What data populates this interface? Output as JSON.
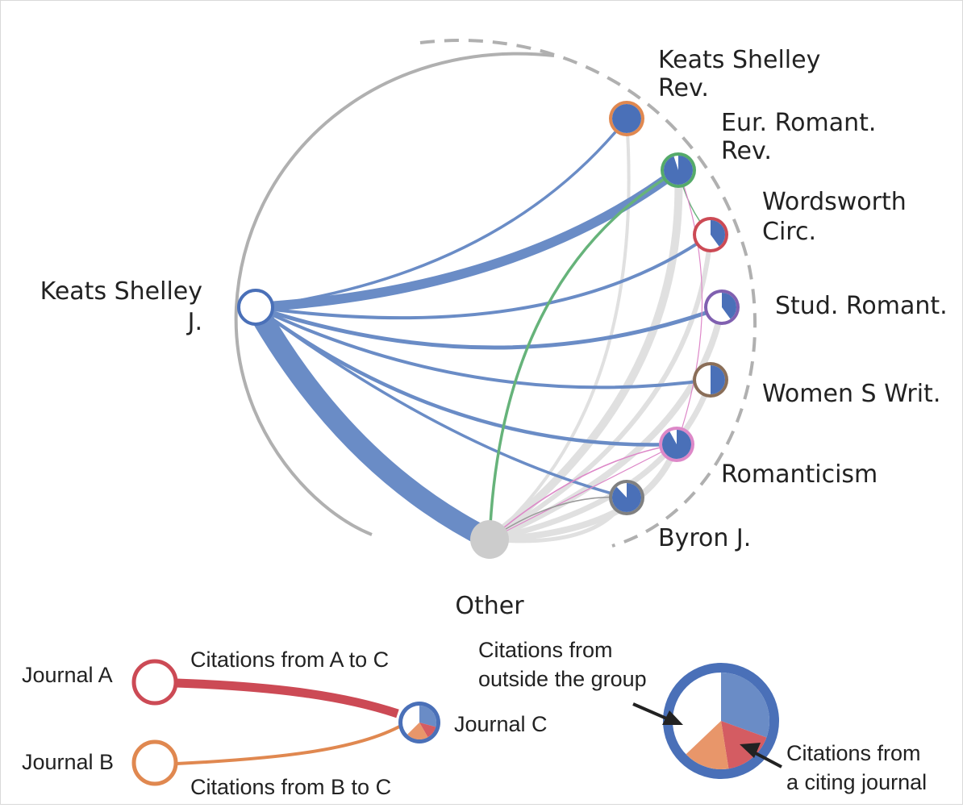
{
  "diagram": {
    "source_journal": {
      "label_line1": "Keats Shelley",
      "label_line2": "J."
    },
    "other_node": {
      "label": "Other"
    },
    "journals": [
      {
        "label_line1": "Keats Shelley",
        "label_line2": "Rev.",
        "ring_color": "#e08850",
        "cited_share": 1.0
      },
      {
        "label_line1": "Eur. Romant.",
        "label_line2": "Rev.",
        "ring_color": "#55aa6a",
        "cited_share": 0.95
      },
      {
        "label_line1": "Wordsworth",
        "label_line2": "Circ.",
        "ring_color": "#cc4a55",
        "cited_share": 0.4
      },
      {
        "label_line1": "Stud. Romant.",
        "label_line2": "",
        "ring_color": "#8060b0",
        "cited_share": 0.4
      },
      {
        "label_line1": "Women S Writ.",
        "label_line2": "",
        "ring_color": "#8a6e58",
        "cited_share": 0.5
      },
      {
        "label_line1": "Romanticism",
        "label_line2": "",
        "ring_color": "#dd88c8",
        "cited_share": 0.92
      },
      {
        "label_line1": "Byron J.",
        "label_line2": "",
        "ring_color": "#808080",
        "cited_share": 0.88
      }
    ],
    "colors": {
      "citation_blue": "#4a70b8",
      "link_blue": "#6a8cc6",
      "other_gray": "#cccccc",
      "arc_gray": "#b0b0b0"
    }
  },
  "legend": {
    "journal_a": "Journal A",
    "journal_b": "Journal B",
    "journal_c": "Journal C",
    "a_to_c": "Citations from A to C",
    "b_to_c": "Citations from B to C",
    "outside_line1": "Citations from",
    "outside_line2": "outside the group",
    "citing_line1": "Citations from",
    "citing_line2": "a citing journal",
    "colors": {
      "journal_a": "#cc4a55",
      "journal_b": "#e08850",
      "journal_c": "#4a70b8"
    }
  }
}
